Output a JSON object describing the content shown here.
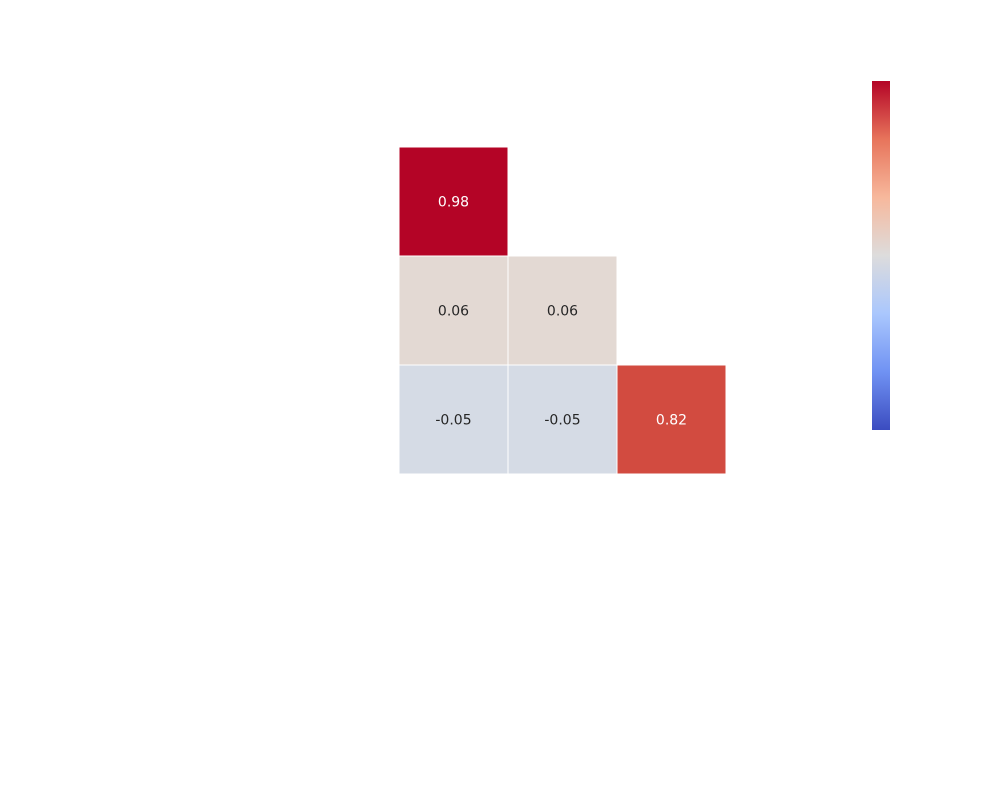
{
  "chart_data": {
    "type": "heatmap",
    "mask": "upper-triangle",
    "cells": [
      {
        "row": 0,
        "col": 0,
        "value": 0.98,
        "label": "0.98",
        "color": "#b40426"
      },
      {
        "row": 1,
        "col": 0,
        "value": 0.06,
        "label": "0.06",
        "color": "#e3d9d3"
      },
      {
        "row": 1,
        "col": 1,
        "value": 0.06,
        "label": "0.06",
        "color": "#e3d9d3"
      },
      {
        "row": 2,
        "col": 0,
        "value": -0.05,
        "label": "-0.05",
        "color": "#d5dbe5"
      },
      {
        "row": 2,
        "col": 1,
        "value": -0.05,
        "label": "-0.05",
        "color": "#d5dbe5"
      },
      {
        "row": 2,
        "col": 2,
        "value": 0.82,
        "label": "0.82",
        "color": "#d24b40"
      }
    ],
    "colormap": "coolwarm",
    "colormap_stops": [
      "#3b4cc0",
      "#7092f3",
      "#aac7fd",
      "#dddcdc",
      "#f7b89c",
      "#e7745b",
      "#b40426"
    ],
    "grid_line_color": "#ffffff",
    "light_text_color": "#ffffff",
    "dark_text_color": "#262626"
  }
}
